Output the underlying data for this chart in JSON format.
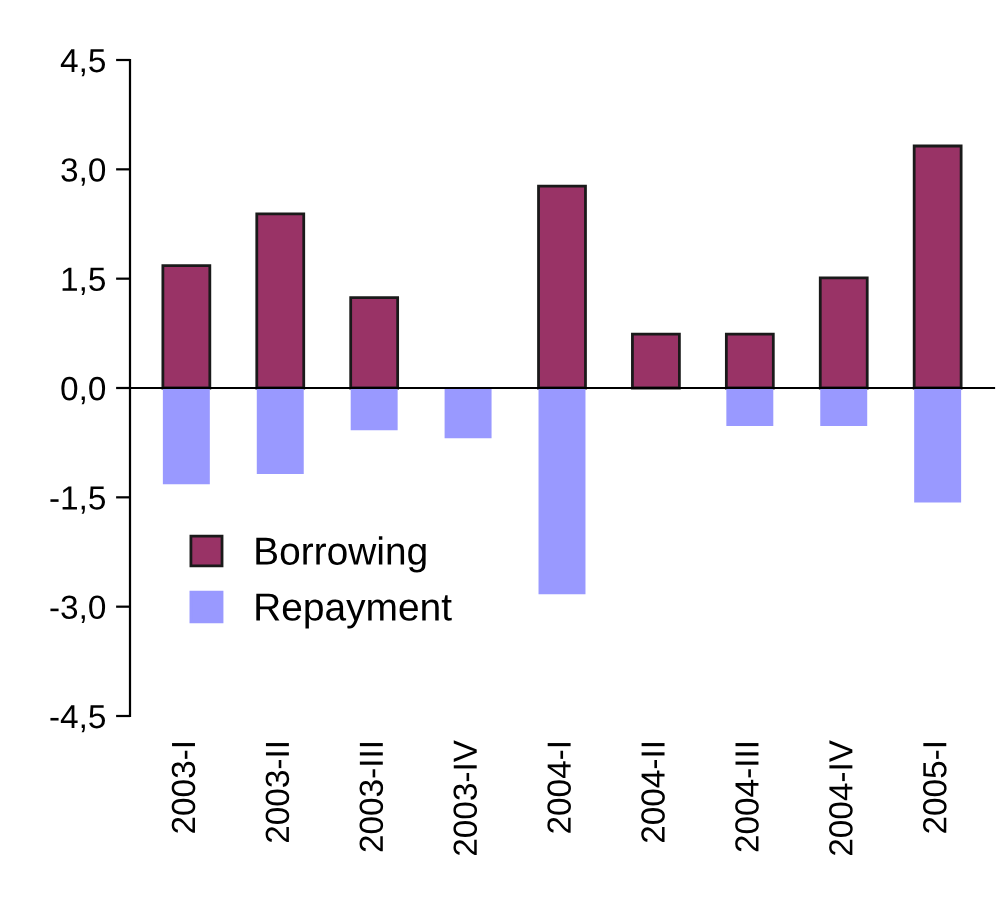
{
  "chart_data": {
    "type": "bar",
    "stacked": true,
    "categories": [
      "2003-I",
      "2003-II",
      "2003-III",
      "2003-IV",
      "2004-I",
      "2004-II",
      "2004-III",
      "2004-IV",
      "2005-I"
    ],
    "series": [
      {
        "name": "Borrowing",
        "color": "#993366",
        "values": [
          1.68,
          2.39,
          1.24,
          null,
          2.77,
          0.74,
          0.74,
          1.51,
          3.32
        ]
      },
      {
        "name": "Repayment",
        "color": "#9999ff",
        "values": [
          -1.32,
          -1.18,
          -0.58,
          -0.69,
          -2.83,
          null,
          -0.52,
          -0.52,
          -1.57
        ]
      }
    ],
    "ylim": [
      -4.5,
      4.5
    ],
    "yticks": [
      {
        "value": -4.5,
        "label": "-4,5"
      },
      {
        "value": -3.0,
        "label": "-3,0"
      },
      {
        "value": -1.5,
        "label": "-1,5"
      },
      {
        "value": 0.0,
        "label": "0,0"
      },
      {
        "value": 1.5,
        "label": "1,5"
      },
      {
        "value": 3.0,
        "label": "3,0"
      },
      {
        "value": 4.5,
        "label": "4,5"
      }
    ],
    "legend": "bottom left"
  }
}
